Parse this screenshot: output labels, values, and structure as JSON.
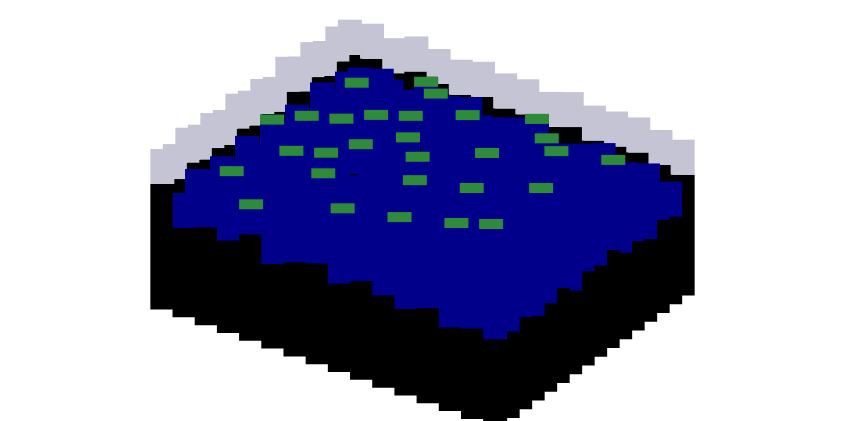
{
  "chart_data": {
    "type": "surface3d",
    "tick_labels": false,
    "grid": false,
    "color": "#00008b",
    "zlim": [
      0,
      100
    ],
    "cells": [
      [
        88,
        92,
        85,
        95,
        90,
        87,
        93,
        89,
        91,
        86,
        94,
        88,
        90,
        92,
        87,
        85
      ],
      [
        90,
        55,
        62,
        48,
        70,
        58,
        65,
        52,
        60,
        72,
        49,
        57,
        66,
        54,
        61,
        50
      ],
      [
        84,
        60,
        45,
        68,
        53,
        75,
        47,
        63,
        58,
        50,
        69,
        44,
        59,
        71,
        48,
        56
      ],
      [
        92,
        52,
        71,
        57,
        64,
        49,
        62,
        78,
        46,
        61,
        55,
        73,
        50,
        58,
        67,
        45
      ],
      [
        86,
        67,
        50,
        62,
        45,
        70,
        56,
        52,
        68,
        57,
        64,
        48,
        62,
        53,
        59,
        52
      ],
      [
        95,
        48,
        63,
        54,
        72,
        58,
        44,
        66,
        59,
        73,
        51,
        60,
        47,
        65,
        55,
        49
      ],
      [
        83,
        62,
        57,
        69,
        50,
        61,
        74,
        49,
        63,
        55,
        67,
        54,
        70,
        52,
        58,
        61
      ],
      [
        90,
        55,
        73,
        47,
        66,
        52,
        60,
        71,
        48,
        64,
        58,
        46,
        61,
        57,
        50,
        54
      ],
      [
        87,
        70,
        49,
        61,
        58,
        77,
        45,
        57,
        66,
        52,
        72,
        59,
        53,
        63,
        48,
        57
      ],
      [
        93,
        51,
        64,
        55,
        69,
        48,
        63,
        54,
        73,
        60,
        47,
        65,
        56,
        50,
        62,
        46
      ],
      [
        85,
        66,
        58,
        72,
        47,
        62,
        56,
        68,
        50,
        57,
        64,
        52,
        69,
        55,
        49,
        58
      ],
      [
        91,
        49,
        67,
        53,
        60,
        74,
        51,
        59,
        65,
        46,
        58,
        71,
        48,
        61,
        56,
        51
      ],
      [
        88,
        63,
        52,
        65,
        56,
        49,
        68,
        47,
        61,
        70,
        53,
        57,
        64,
        50,
        59,
        47
      ],
      [
        94,
        57,
        70,
        48,
        64,
        58,
        53,
        72,
        49,
        56,
        66,
        50,
        55,
        62,
        47,
        55
      ],
      [
        86,
        68,
        46,
        59,
        52,
        67,
        61,
        50,
        63,
        58,
        48,
        64,
        52,
        57,
        60,
        49
      ],
      [
        90,
        52,
        61,
        55,
        70,
        47,
        57,
        64,
        51,
        62,
        55,
        49,
        58,
        46,
        53,
        50
      ]
    ]
  }
}
